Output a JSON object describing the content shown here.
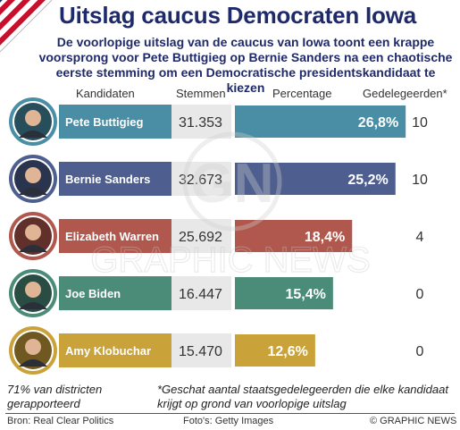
{
  "title": "Uitslag caucus Democraten Iowa",
  "subtitle": "De voorlopige uitslag van de caucus van Iowa toont een krappe voorsprong voor Pete Buttigieg op Bernie Sanders na een chaotische eerste stemming om een Democratische presidentskandidaat te kiezen",
  "columns": {
    "candidates": "Kandidaten",
    "votes": "Stemmen",
    "percentage": "Percentage",
    "delegates": "Gedelegeerden*"
  },
  "chart_data": {
    "type": "bar",
    "categories": [
      "Pete Buttigieg",
      "Bernie Sanders",
      "Elizabeth Warren",
      "Joe Biden",
      "Amy Klobuchar"
    ],
    "votes": [
      "31.353",
      "32.673",
      "25.692",
      "16.447",
      "15.470"
    ],
    "values": [
      26.8,
      25.2,
      18.4,
      15.4,
      12.6
    ],
    "value_labels": [
      "26,8%",
      "25,2%",
      "18,4%",
      "15,4%",
      "12,6%"
    ],
    "delegates": [
      "10",
      "10",
      "4",
      "0",
      "0"
    ],
    "colors": [
      "#4a8ea5",
      "#4e5e8e",
      "#b0574e",
      "#4a8c78",
      "#c9a23a"
    ],
    "xlim": [
      0,
      30
    ]
  },
  "footnotes": {
    "reported": "71% van districten gerapporteerd",
    "delegates_note": "*Geschat aantal staatsgedelegeerden die elke kandidaat krijgt op grond van voorlopige uitslag"
  },
  "footer": {
    "source": "Bron: Real Clear Politics",
    "photos": "Foto's: Getty Images",
    "copyright": "© GRAPHIC NEWS"
  },
  "watermark": {
    "logo": "GN",
    "text": "GRAPHIC NEWS"
  }
}
